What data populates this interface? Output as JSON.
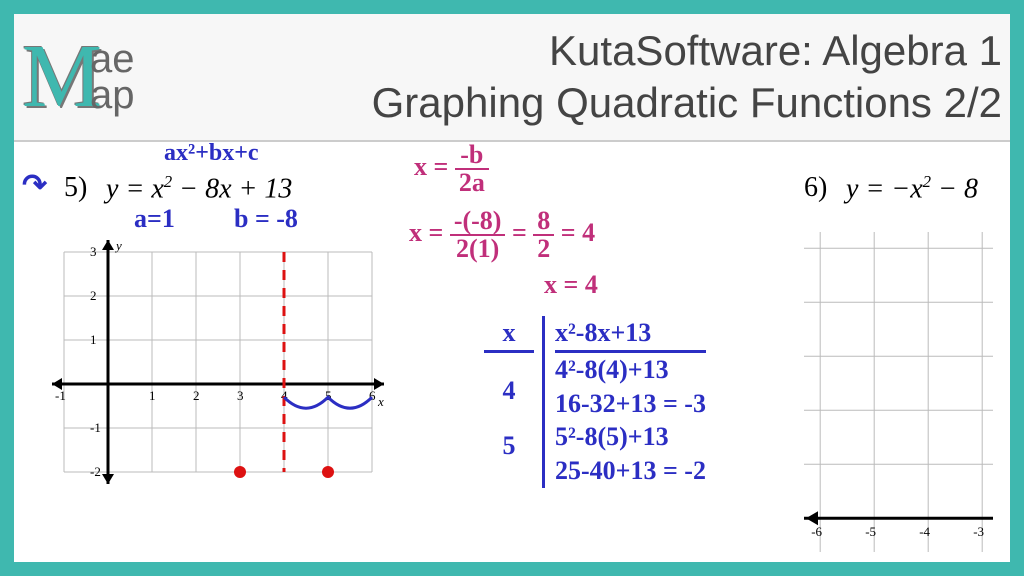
{
  "header": {
    "logo_letter": "M",
    "logo_top": "ae",
    "logo_bottom": "ap",
    "title_line1": "KutaSoftware: Algebra 1",
    "title_line2": "Graphing Quadratic Functions 2/2"
  },
  "problem5": {
    "label": "5)",
    "equation_html": "y = x² − 8x + 13",
    "annot_form": "ax²+bx+c",
    "annot_a": "a=1",
    "annot_b": "b = -8",
    "pink_line1_lhs": "x =",
    "pink_line1_frac": {
      "n": "-b",
      "d": "2a"
    },
    "pink_line2_lhs": "x =",
    "pink_line2_frac": {
      "n": "-(-8)",
      "d": "2(1)"
    },
    "pink_line2_eq1": {
      "n": "8",
      "d": "2"
    },
    "pink_line2_result": "= 4",
    "pink_line3": "x = 4",
    "table": {
      "head_x": "x",
      "head_expr": "x²-8x+13",
      "rows": [
        {
          "x": "4",
          "expr_a": "4²-8(4)+13",
          "expr_b": "16-32+13 = -3"
        },
        {
          "x": "5",
          "expr_a": "5²-8(5)+13",
          "expr_b": "25-40+13 = -2"
        }
      ]
    },
    "graph": {
      "x_min": -1,
      "x_max": 6,
      "y_min": -2,
      "y_max": 3,
      "unit": 44,
      "axis_of_symmetry_x": 4,
      "points": [
        {
          "x": 3,
          "y": -2,
          "color": "#d11"
        },
        {
          "x": 5,
          "y": -2,
          "color": "#d11"
        }
      ],
      "point_r": 6,
      "bump_y": -0.3,
      "bump_x_start": 4,
      "bump_x_end": 6,
      "bump_color": "#2b2ec3",
      "grid_color": "#bbbbbb",
      "axis_color": "#000000",
      "axis_stroke": 3,
      "grid_stroke": 1,
      "dash_color": "#d11"
    }
  },
  "problem6": {
    "label": "6)",
    "equation_html": "y = −x² − 8",
    "graph": {
      "x_ticks": [
        -6,
        -5,
        -4,
        -3
      ],
      "unit": 54,
      "grid_color": "#bbbbbb",
      "axis_color": "#000000",
      "axis_stroke": 3,
      "grid_stroke": 1
    }
  },
  "colors": {
    "teal": "#3fb8af",
    "blue": "#2b2ec3",
    "pink": "#c02f7a",
    "red": "#d11",
    "grey": "#f7f7f7"
  }
}
